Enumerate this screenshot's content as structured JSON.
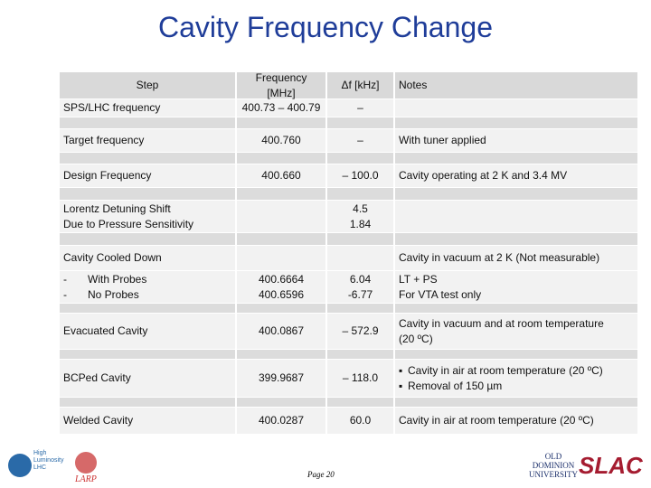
{
  "title": "Cavity Frequency Change",
  "table": {
    "header": {
      "step": "Step",
      "frequency": "Frequency\n[MHz]",
      "delta": "Δf [kHz]",
      "notes": "Notes"
    },
    "rows": [
      {
        "step": "SPS/LHC frequency",
        "frequency": "400.73 – 400.79",
        "delta": "–"
      },
      {
        "step": "Target frequency",
        "frequency": "400.760",
        "delta": "–",
        "notes": "With tuner applied"
      },
      {
        "step": "Design Frequency",
        "frequency": "400.660",
        "delta": "– 100.0",
        "notes": "Cavity operating at 2 K and 3.4 MV"
      },
      {
        "step": "Lorentz Detuning Shift\nDue to Pressure Sensitivity",
        "delta": "4.5\n1.84"
      },
      {
        "step": "Cavity Cooled Down",
        "notes": "Cavity in vacuum at 2 K (Not measurable)"
      },
      {
        "step_items": [
          "With Probes",
          "No Probes"
        ],
        "frequency": "400.6664\n400.6596",
        "delta": "6.04\n-6.77",
        "notes": "LT + PS\nFor VTA test only"
      },
      {
        "step": "Evacuated Cavity",
        "frequency": "400.0867",
        "delta": "– 572.9",
        "notes": "Cavity in vacuum and at room temperature\n(20 ºC)"
      },
      {
        "step": "BCPed Cavity",
        "frequency": "399.9687",
        "delta": "– 118.0",
        "notes_items": [
          "Cavity in air at room temperature (20 ºC)",
          "Removal of 150 µm"
        ]
      },
      {
        "step": "Welded Cavity",
        "frequency": "400.0287",
        "delta": "60.0",
        "notes": "Cavity in air at room temperature (20 ºC)"
      }
    ]
  },
  "footer": {
    "page": "Page 20",
    "hilumi": "High\nLuminosity\nLHC",
    "larp": "LARP",
    "odu": "OLD\nDOMINION\nUNIVERSITY",
    "slac": "SLAC"
  }
}
